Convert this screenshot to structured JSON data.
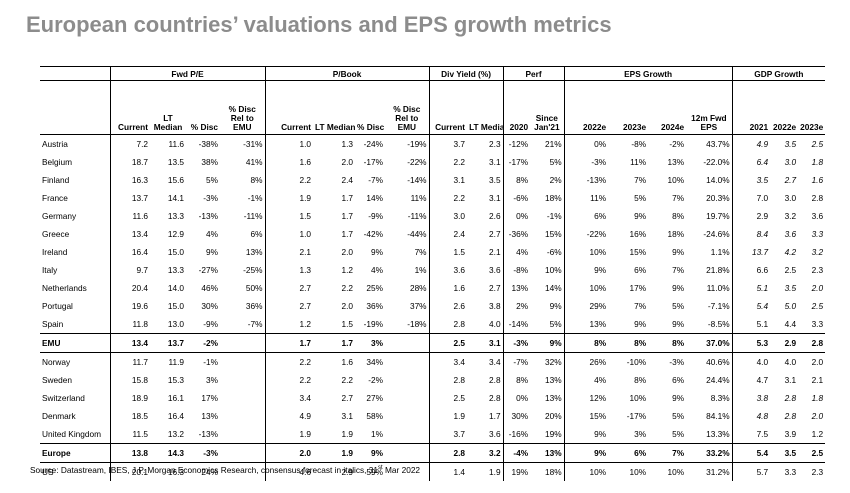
{
  "title": "European countries’ valuations and EPS growth metrics",
  "groups": [
    "Fwd P/E",
    "P/Book",
    "Div Yield (%)",
    "Perf",
    "EPS Growth",
    "GDP Growth"
  ],
  "columns": [
    [
      "Current",
      "LT Median",
      "% Disc",
      "% Disc Rel to EMU"
    ],
    [
      "Current",
      "LT Median",
      "% Disc",
      "% Disc Rel to EMU"
    ],
    [
      "Current",
      "LT Median"
    ],
    [
      "2020",
      "Since Jan'21"
    ],
    [
      "2022e",
      "2023e",
      "2024e",
      "12m Fwd EPS"
    ],
    [
      "2021",
      "2022e",
      "2023e"
    ]
  ],
  "rows": [
    {
      "name": "Austria",
      "aggregate": false,
      "italic_gdp": [
        true,
        true,
        true
      ],
      "values": [
        "7.2",
        "11.6",
        "-38%",
        "-31%",
        "1.0",
        "1.3",
        "-24%",
        "-19%",
        "3.7",
        "2.3",
        "-12%",
        "21%",
        "0%",
        "-8%",
        "-2%",
        "43.7%",
        "4.9",
        "3.5",
        "2.5"
      ]
    },
    {
      "name": "Belgium",
      "aggregate": false,
      "italic_gdp": [
        true,
        true,
        true
      ],
      "values": [
        "18.7",
        "13.5",
        "38%",
        "41%",
        "1.6",
        "2.0",
        "-17%",
        "-22%",
        "2.2",
        "3.1",
        "-17%",
        "5%",
        "-3%",
        "11%",
        "13%",
        "-22.0%",
        "6.4",
        "3.0",
        "1.8"
      ]
    },
    {
      "name": "Finland",
      "aggregate": false,
      "italic_gdp": [
        true,
        true,
        true
      ],
      "values": [
        "16.3",
        "15.6",
        "5%",
        "8%",
        "2.2",
        "2.4",
        "-7%",
        "-14%",
        "3.1",
        "3.5",
        "8%",
        "2%",
        "-13%",
        "7%",
        "10%",
        "14.0%",
        "3.5",
        "2.7",
        "1.6"
      ]
    },
    {
      "name": "France",
      "aggregate": false,
      "italic_gdp": [
        false,
        false,
        false
      ],
      "values": [
        "13.7",
        "14.1",
        "-3%",
        "-1%",
        "1.9",
        "1.7",
        "14%",
        "11%",
        "2.2",
        "3.1",
        "-6%",
        "18%",
        "11%",
        "5%",
        "7%",
        "20.3%",
        "7.0",
        "3.0",
        "2.8"
      ]
    },
    {
      "name": "Germany",
      "aggregate": false,
      "italic_gdp": [
        false,
        false,
        false
      ],
      "values": [
        "11.6",
        "13.3",
        "-13%",
        "-11%",
        "1.5",
        "1.7",
        "-9%",
        "-11%",
        "3.0",
        "2.6",
        "0%",
        "-1%",
        "6%",
        "9%",
        "8%",
        "19.7%",
        "2.9",
        "3.2",
        "3.6"
      ]
    },
    {
      "name": "Greece",
      "aggregate": false,
      "italic_gdp": [
        true,
        true,
        true
      ],
      "values": [
        "13.4",
        "12.9",
        "4%",
        "6%",
        "1.0",
        "1.7",
        "-42%",
        "-44%",
        "2.4",
        "2.7",
        "-36%",
        "15%",
        "-22%",
        "16%",
        "18%",
        "-24.6%",
        "8.4",
        "3.6",
        "3.3"
      ]
    },
    {
      "name": "Ireland",
      "aggregate": false,
      "italic_gdp": [
        true,
        true,
        true
      ],
      "values": [
        "16.4",
        "15.0",
        "9%",
        "13%",
        "2.1",
        "2.0",
        "9%",
        "7%",
        "1.5",
        "2.1",
        "4%",
        "-6%",
        "10%",
        "15%",
        "9%",
        "1.1%",
        "13.7",
        "4.2",
        "3.2"
      ]
    },
    {
      "name": "Italy",
      "aggregate": false,
      "italic_gdp": [
        false,
        false,
        false
      ],
      "values": [
        "9.7",
        "13.3",
        "-27%",
        "-25%",
        "1.3",
        "1.2",
        "4%",
        "1%",
        "3.6",
        "3.6",
        "-8%",
        "10%",
        "9%",
        "6%",
        "7%",
        "21.8%",
        "6.6",
        "2.5",
        "2.3"
      ]
    },
    {
      "name": "Netherlands",
      "aggregate": false,
      "italic_gdp": [
        true,
        true,
        true
      ],
      "values": [
        "20.4",
        "14.0",
        "46%",
        "50%",
        "2.7",
        "2.2",
        "25%",
        "28%",
        "1.6",
        "2.7",
        "13%",
        "14%",
        "10%",
        "17%",
        "9%",
        "11.0%",
        "5.1",
        "3.5",
        "2.0"
      ]
    },
    {
      "name": "Portugal",
      "aggregate": false,
      "italic_gdp": [
        true,
        true,
        true
      ],
      "values": [
        "19.6",
        "15.0",
        "30%",
        "36%",
        "2.7",
        "2.0",
        "36%",
        "37%",
        "2.6",
        "3.8",
        "2%",
        "9%",
        "29%",
        "7%",
        "5%",
        "-7.1%",
        "5.4",
        "5.0",
        "2.5"
      ]
    },
    {
      "name": "Spain",
      "aggregate": false,
      "italic_gdp": [
        false,
        false,
        false
      ],
      "values": [
        "11.8",
        "13.0",
        "-9%",
        "-7%",
        "1.2",
        "1.5",
        "-19%",
        "-18%",
        "2.8",
        "4.0",
        "-14%",
        "5%",
        "13%",
        "9%",
        "9%",
        "-8.5%",
        "5.1",
        "4.4",
        "3.3"
      ]
    },
    {
      "name": "EMU",
      "aggregate": true,
      "italic_gdp": [
        false,
        false,
        false
      ],
      "values": [
        "13.4",
        "13.7",
        "-2%",
        "",
        "1.7",
        "1.7",
        "3%",
        "",
        "2.5",
        "3.1",
        "-3%",
        "9%",
        "8%",
        "8%",
        "8%",
        "37.0%",
        "5.3",
        "2.9",
        "2.8"
      ]
    },
    {
      "name": "Norway",
      "aggregate": false,
      "italic_gdp": [
        false,
        false,
        false
      ],
      "values": [
        "11.7",
        "11.9",
        "-1%",
        "",
        "2.2",
        "1.6",
        "34%",
        "",
        "3.4",
        "3.4",
        "-7%",
        "32%",
        "26%",
        "-10%",
        "-3%",
        "40.6%",
        "4.0",
        "4.0",
        "2.0"
      ]
    },
    {
      "name": "Sweden",
      "aggregate": false,
      "italic_gdp": [
        false,
        false,
        false
      ],
      "values": [
        "15.8",
        "15.3",
        "3%",
        "",
        "2.2",
        "2.2",
        "-2%",
        "",
        "2.8",
        "2.8",
        "8%",
        "13%",
        "4%",
        "8%",
        "6%",
        "24.4%",
        "4.7",
        "3.1",
        "2.1"
      ]
    },
    {
      "name": "Switzerland",
      "aggregate": false,
      "italic_gdp": [
        true,
        true,
        true
      ],
      "values": [
        "18.9",
        "16.1",
        "17%",
        "",
        "3.4",
        "2.7",
        "27%",
        "",
        "2.5",
        "2.8",
        "0%",
        "13%",
        "12%",
        "10%",
        "9%",
        "8.3%",
        "3.8",
        "2.8",
        "1.8"
      ]
    },
    {
      "name": "Denmark",
      "aggregate": false,
      "italic_gdp": [
        true,
        true,
        true
      ],
      "values": [
        "18.5",
        "16.4",
        "13%",
        "",
        "4.9",
        "3.1",
        "58%",
        "",
        "1.9",
        "1.7",
        "30%",
        "20%",
        "15%",
        "-17%",
        "5%",
        "84.1%",
        "4.8",
        "2.8",
        "2.0"
      ]
    },
    {
      "name": "United Kingdom",
      "aggregate": false,
      "italic_gdp": [
        false,
        false,
        false
      ],
      "values": [
        "11.5",
        "13.2",
        "-13%",
        "",
        "1.9",
        "1.9",
        "1%",
        "",
        "3.7",
        "3.6",
        "-16%",
        "19%",
        "9%",
        "3%",
        "5%",
        "13.3%",
        "7.5",
        "3.9",
        "1.2"
      ]
    },
    {
      "name": "Europe",
      "aggregate": true,
      "italic_gdp": [
        false,
        false,
        false
      ],
      "values": [
        "13.8",
        "14.3",
        "-3%",
        "",
        "2.0",
        "1.9",
        "9%",
        "",
        "2.8",
        "3.2",
        "-4%",
        "13%",
        "9%",
        "6%",
        "7%",
        "33.2%",
        "5.4",
        "3.5",
        "2.5"
      ]
    },
    {
      "name": "US",
      "aggregate": false,
      "italic_gdp": [
        false,
        false,
        false
      ],
      "values": [
        "20.1",
        "16.3",
        "24%",
        "",
        "4.6",
        "2.9",
        "59%",
        "",
        "1.4",
        "1.9",
        "19%",
        "18%",
        "10%",
        "10%",
        "10%",
        "31.2%",
        "5.7",
        "3.3",
        "2.3"
      ]
    }
  ],
  "source_text": "Source: Datastream, IBES, J.P. Morgan Economics Research,  consensus forecast in italics, 31",
  "source_sup": "st",
  "source_tail": " Mar 2022"
}
